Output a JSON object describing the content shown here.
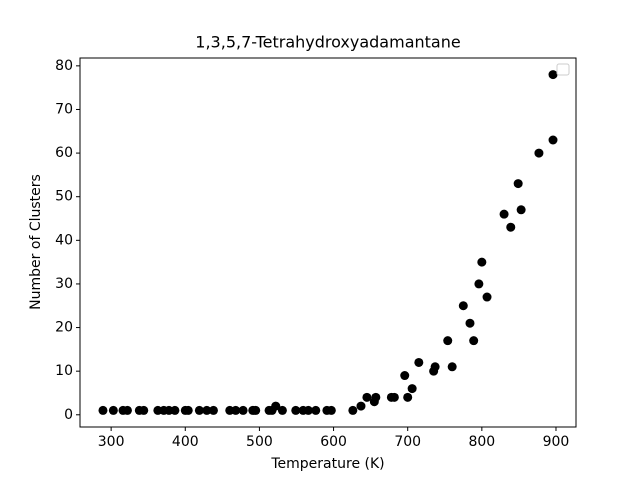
{
  "chart_data": {
    "type": "scatter",
    "title": "1,3,5,7-Tetrahydroxyadamantane",
    "x_label": "Temperature (K)",
    "y_label": "Number of Clusters",
    "color": "#000000",
    "x": [
      289,
      303,
      316,
      322,
      338,
      344,
      363,
      371,
      378,
      386,
      400,
      404,
      419,
      429,
      438,
      460,
      468,
      478,
      491,
      495,
      513,
      517,
      522,
      531,
      549,
      559,
      566,
      576,
      591,
      597,
      626,
      637,
      645,
      657,
      655,
      678,
      682,
      696,
      700,
      706,
      715,
      735,
      737,
      754,
      760,
      775,
      784,
      789,
      796,
      800,
      807,
      830,
      839,
      849,
      853,
      877,
      896,
      896
    ],
    "values": [
      1,
      1,
      1,
      1,
      1,
      1,
      1,
      1,
      1,
      1,
      1,
      1,
      1,
      1,
      1,
      1,
      1,
      1,
      1,
      1,
      1,
      1,
      2,
      1,
      1,
      1,
      1,
      1,
      1,
      1,
      1,
      2,
      4,
      4,
      3,
      4,
      4,
      9,
      4,
      6,
      12,
      10,
      11,
      17,
      11,
      25,
      21,
      17,
      30,
      35,
      27,
      46,
      43,
      53,
      47,
      60,
      78,
      63
    ],
    "xlim": [
      258,
      927
    ],
    "ylim": [
      -2.8,
      81.8
    ],
    "xticks": [
      300,
      400,
      500,
      600,
      700,
      800,
      900
    ],
    "yticks": [
      0,
      10,
      20,
      30,
      40,
      50,
      60,
      70,
      80
    ],
    "grid": false
  }
}
